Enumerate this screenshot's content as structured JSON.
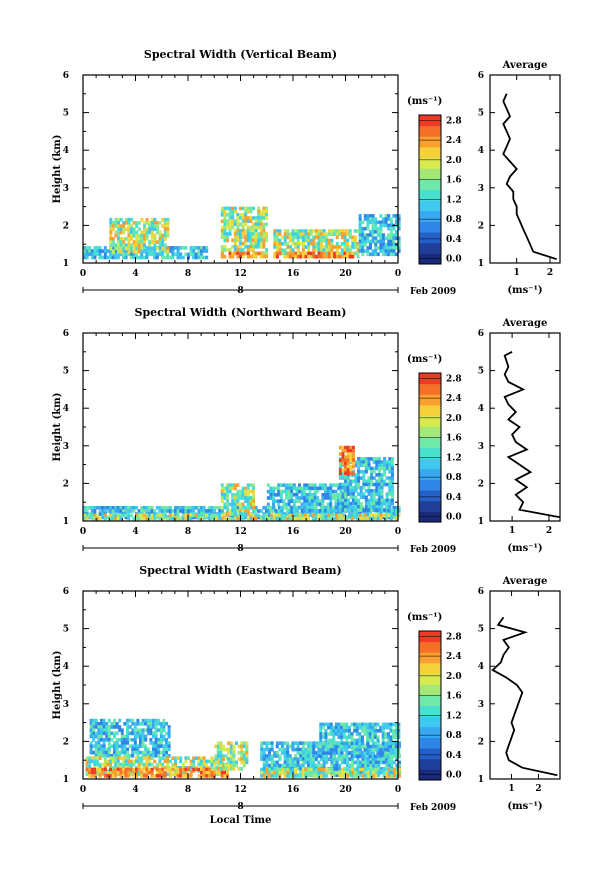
{
  "colors": {
    "scale": [
      "#1a2a7a",
      "#1f3f9a",
      "#2460c8",
      "#2f86e6",
      "#39a8f0",
      "#3fc9ef",
      "#4ae0d0",
      "#6fe8a8",
      "#a4e878",
      "#d8ea4e",
      "#f5d23a",
      "#f8a030",
      "#f47028",
      "#ee3a26"
    ],
    "line": "#000000"
  },
  "shared": {
    "colorbar_unit": "(ms⁻¹)",
    "average_title": "Average",
    "average_xlabel": "(ms⁻¹)",
    "height_label": "Height (km)",
    "date_suffix": "Feb 2009",
    "date_day": "8",
    "time_label": "Local Time"
  },
  "chart_data": [
    {
      "type": "heatmap",
      "title": "Spectral Width (Vertical Beam)",
      "xlabel": "",
      "ylabel": "Height (km)",
      "xlim": [
        0,
        24
      ],
      "ylim": [
        1,
        6
      ],
      "xticks": [
        "0",
        "4",
        "8",
        "12",
        "16",
        "20",
        "0"
      ],
      "yticks": [
        "1",
        "2",
        "3",
        "4",
        "5",
        "6"
      ],
      "colorbar": {
        "unit": "(ms⁻¹)",
        "ticks": [
          "0.0",
          "0.4",
          "0.8",
          "1.2",
          "1.6",
          "2.0",
          "2.4",
          "2.8"
        ]
      },
      "regions": [
        {
          "x0": 0.0,
          "x1": 9.5,
          "y0": 1.15,
          "y1": 1.45,
          "level": "low"
        },
        {
          "x0": 2.0,
          "x1": 6.5,
          "y0": 1.3,
          "y1": 2.2,
          "level": "mid"
        },
        {
          "x0": 10.5,
          "x1": 14.0,
          "y0": 1.2,
          "y1": 2.5,
          "level": "mid"
        },
        {
          "x0": 10.5,
          "x1": 13.5,
          "y0": 1.15,
          "y1": 1.3,
          "level": "high"
        },
        {
          "x0": 14.5,
          "x1": 21.0,
          "y0": 1.15,
          "y1": 1.9,
          "level": "mid"
        },
        {
          "x0": 14.5,
          "x1": 20.5,
          "y0": 1.15,
          "y1": 1.3,
          "level": "high"
        },
        {
          "x0": 21.0,
          "x1": 24.0,
          "y0": 1.2,
          "y1": 2.3,
          "level": "low"
        }
      ],
      "average": {
        "xlim": [
          0.2,
          2.3
        ],
        "xticks": [
          "1",
          "2"
        ],
        "height": [
          1.1,
          1.3,
          1.5,
          1.7,
          1.9,
          2.1,
          2.3,
          2.5,
          2.7,
          2.9,
          3.1,
          3.3,
          3.5,
          3.7,
          3.9,
          4.1,
          4.3,
          4.5,
          4.7,
          4.9,
          5.1,
          5.3,
          5.5
        ],
        "value": [
          2.2,
          1.5,
          1.4,
          1.3,
          1.2,
          1.1,
          1.0,
          1.0,
          0.9,
          0.9,
          0.7,
          0.8,
          1.0,
          0.8,
          0.6,
          0.7,
          0.8,
          0.7,
          0.6,
          0.8,
          0.7,
          0.6,
          0.7
        ]
      }
    },
    {
      "type": "heatmap",
      "title": "Spectral Width (Northward Beam)",
      "xlabel": "",
      "ylabel": "Height (km)",
      "xlim": [
        0,
        24
      ],
      "ylim": [
        1,
        6
      ],
      "xticks": [
        "0",
        "4",
        "8",
        "12",
        "16",
        "20",
        "0"
      ],
      "yticks": [
        "1",
        "2",
        "3",
        "4",
        "5",
        "6"
      ],
      "colorbar": {
        "unit": "(ms⁻¹)",
        "ticks": [
          "0.0",
          "0.4",
          "0.8",
          "1.2",
          "1.6",
          "2.0",
          "2.4",
          "2.8"
        ]
      },
      "regions": [
        {
          "x0": 0.0,
          "x1": 24.0,
          "y0": 1.1,
          "y1": 1.4,
          "level": "low"
        },
        {
          "x0": 0.0,
          "x1": 24.0,
          "y0": 1.1,
          "y1": 1.2,
          "level": "mid"
        },
        {
          "x0": 10.5,
          "x1": 13.0,
          "y0": 1.2,
          "y1": 2.0,
          "level": "mid"
        },
        {
          "x0": 14.0,
          "x1": 20.0,
          "y0": 1.3,
          "y1": 2.0,
          "level": "low"
        },
        {
          "x0": 19.5,
          "x1": 23.5,
          "y0": 1.3,
          "y1": 2.7,
          "level": "low"
        },
        {
          "x0": 19.5,
          "x1": 20.5,
          "y0": 2.3,
          "y1": 3.0,
          "level": "high"
        }
      ],
      "average": {
        "xlim": [
          0.4,
          2.3
        ],
        "xticks": [
          "1",
          "2"
        ],
        "height": [
          1.1,
          1.3,
          1.5,
          1.7,
          1.9,
          2.1,
          2.3,
          2.5,
          2.7,
          2.9,
          3.1,
          3.3,
          3.5,
          3.7,
          3.9,
          4.1,
          4.3,
          4.5,
          4.7,
          4.9,
          5.1,
          5.4,
          5.5
        ],
        "value": [
          2.3,
          1.2,
          1.3,
          1.1,
          1.4,
          1.1,
          1.5,
          1.2,
          0.9,
          1.4,
          1.1,
          1.0,
          1.2,
          0.9,
          1.1,
          0.9,
          0.8,
          1.3,
          0.9,
          0.8,
          0.9,
          0.8,
          1.0
        ]
      }
    },
    {
      "type": "heatmap",
      "title": "Spectral Width (Eastward Beam)",
      "xlabel": "Local Time",
      "ylabel": "Height (km)",
      "xlim": [
        0,
        24
      ],
      "ylim": [
        1,
        6
      ],
      "xticks": [
        "0",
        "4",
        "8",
        "12",
        "16",
        "20",
        "0"
      ],
      "yticks": [
        "1",
        "2",
        "3",
        "4",
        "5",
        "6"
      ],
      "colorbar": {
        "unit": "(ms⁻¹)",
        "ticks": [
          "0.0",
          "0.4",
          "0.8",
          "1.2",
          "1.6",
          "2.0",
          "2.4",
          "2.8"
        ]
      },
      "regions": [
        {
          "x0": 0.5,
          "x1": 6.5,
          "y0": 1.6,
          "y1": 2.6,
          "level": "low"
        },
        {
          "x0": 0.2,
          "x1": 11.0,
          "y0": 1.1,
          "y1": 1.6,
          "level": "mid"
        },
        {
          "x0": 0.2,
          "x1": 11.0,
          "y0": 1.1,
          "y1": 1.3,
          "level": "high"
        },
        {
          "x0": 10.0,
          "x1": 12.5,
          "y0": 1.3,
          "y1": 2.0,
          "level": "mid"
        },
        {
          "x0": 13.5,
          "x1": 24.0,
          "y0": 1.1,
          "y1": 2.0,
          "level": "low"
        },
        {
          "x0": 18.0,
          "x1": 24.0,
          "y0": 1.6,
          "y1": 2.5,
          "level": "low"
        },
        {
          "x0": 13.5,
          "x1": 24.0,
          "y0": 1.1,
          "y1": 1.3,
          "level": "mid"
        }
      ],
      "average": {
        "xlim": [
          0.2,
          2.8
        ],
        "xticks": [
          "1",
          "2"
        ],
        "height": [
          1.1,
          1.3,
          1.5,
          1.7,
          1.9,
          2.1,
          2.3,
          2.5,
          2.7,
          2.9,
          3.1,
          3.3,
          3.5,
          3.7,
          3.9,
          4.1,
          4.3,
          4.5,
          4.7,
          4.9,
          5.1,
          5.3
        ],
        "value": [
          2.7,
          1.4,
          0.9,
          0.8,
          0.9,
          1.0,
          1.1,
          1.0,
          1.1,
          1.2,
          1.3,
          1.4,
          1.2,
          0.8,
          0.3,
          0.6,
          0.7,
          0.9,
          0.7,
          1.5,
          0.5,
          0.7
        ]
      }
    }
  ]
}
